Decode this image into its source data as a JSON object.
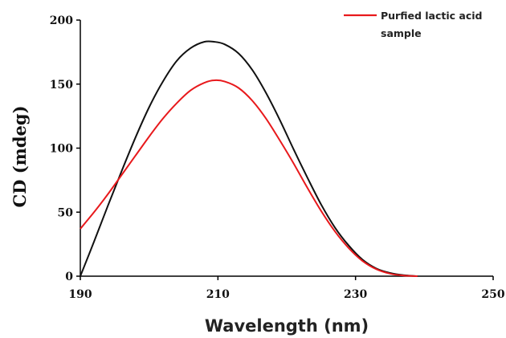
{
  "chart_data": {
    "type": "line",
    "title": "",
    "xlabel": "Wavelength (nm)",
    "ylabel": "CD (mdeg)",
    "xlim": [
      190,
      250
    ],
    "ylim": [
      0,
      200
    ],
    "xticks": [
      190,
      210,
      230,
      250
    ],
    "yticks": [
      0,
      50,
      100,
      150,
      200
    ],
    "grid": false,
    "legend": {
      "placement": "top-right",
      "lines": [
        "Purfied lactic acid",
        "sample"
      ]
    },
    "series": [
      {
        "name": "",
        "color": "#111111",
        "x": [
          190,
          192,
          194,
          196,
          198,
          200,
          202,
          204,
          206,
          208,
          209.5,
          211,
          213,
          215,
          217,
          219,
          221,
          223,
          225,
          227,
          229,
          231,
          233,
          235,
          237,
          239
        ],
        "y": [
          0,
          27,
          55,
          82,
          108,
          132,
          152,
          168,
          178,
          183,
          183,
          181,
          174,
          161,
          143,
          122,
          99,
          77,
          56,
          38,
          24,
          13,
          6,
          2.5,
          0.8,
          0
        ]
      },
      {
        "name": "Purfied lactic acid sample",
        "color": "#e8191c",
        "x": [
          190,
          192,
          194,
          196,
          198,
          200,
          202,
          204,
          206,
          208,
          209.5,
          211,
          213,
          215,
          217,
          219,
          221,
          223,
          225,
          227,
          229,
          231,
          233,
          235,
          237,
          239
        ],
        "y": [
          37,
          50,
          64,
          79,
          94,
          109,
          123,
          135,
          145,
          151,
          153,
          152,
          147,
          137,
          123,
          106,
          88,
          69,
          51,
          35,
          22,
          12,
          5.5,
          2,
          0.5,
          0
        ]
      }
    ]
  }
}
